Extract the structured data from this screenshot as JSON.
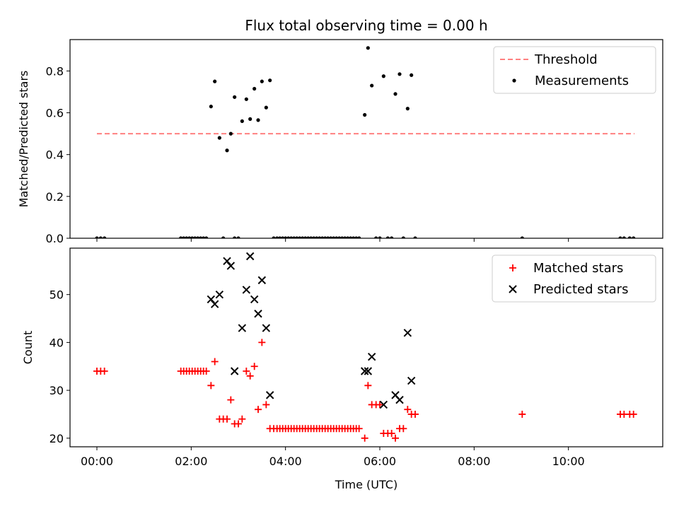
{
  "chart_data": {
    "title": "Flux total observing time = 0.00 h",
    "xlabel": "Time (UTC)",
    "x_unit": "hours",
    "xlim": [
      -0.57,
      12.0
    ],
    "xticks": [
      {
        "value": 0,
        "label": "00:00"
      },
      {
        "value": 2,
        "label": "02:00"
      },
      {
        "value": 4,
        "label": "04:00"
      },
      {
        "value": 6,
        "label": "06:00"
      },
      {
        "value": 8,
        "label": "08:00"
      },
      {
        "value": 10,
        "label": "10:00"
      }
    ],
    "panels": [
      {
        "type": "scatter",
        "ylabel": "Matched/Predicted stars",
        "ylim": [
          0,
          0.95
        ],
        "yticks": [
          0.0,
          0.2,
          0.4,
          0.6,
          0.8
        ],
        "ytick_labels": [
          "0.0",
          "0.2",
          "0.4",
          "0.6",
          "0.8"
        ],
        "legend": "top-right",
        "series": [
          {
            "name": "Threshold",
            "kind": "line",
            "color": "#ff8080",
            "dash": true,
            "x": [
              0.0,
              11.4
            ],
            "y": [
              0.5,
              0.5
            ]
          },
          {
            "name": "Measurements",
            "kind": "dot",
            "color": "#000000",
            "x": [
              0.0,
              0.08,
              0.16,
              1.78,
              1.84,
              1.9,
              1.96,
              2.02,
              2.08,
              2.14,
              2.2,
              2.26,
              2.32,
              2.42,
              2.5,
              2.6,
              2.68,
              2.76,
              2.84,
              2.92,
              2.92,
              3.0,
              3.08,
              3.17,
              3.25,
              3.34,
              3.42,
              3.5,
              3.59,
              3.67,
              3.75,
              3.82,
              3.88,
              3.94,
              4.0,
              4.06,
              4.12,
              4.18,
              4.24,
              4.3,
              4.36,
              4.42,
              4.48,
              4.54,
              4.6,
              4.66,
              4.72,
              4.78,
              4.84,
              4.9,
              4.96,
              5.02,
              5.08,
              5.14,
              5.2,
              5.26,
              5.32,
              5.38,
              5.44,
              5.5,
              5.56,
              5.68,
              5.75,
              5.83,
              5.92,
              6.0,
              6.08,
              6.17,
              6.25,
              6.33,
              6.42,
              6.5,
              6.59,
              6.67,
              6.75,
              9.02,
              11.1,
              11.18,
              11.3,
              11.38
            ],
            "y": [
              0,
              0,
              0,
              0,
              0,
              0,
              0,
              0,
              0,
              0,
              0,
              0,
              0,
              0.63,
              0.75,
              0.48,
              0,
              0.42,
              0.5,
              0.675,
              0,
              0,
              0.56,
              0.665,
              0.57,
              0.715,
              0.565,
              0.75,
              0.625,
              0.755,
              0,
              0,
              0,
              0,
              0,
              0,
              0,
              0,
              0,
              0,
              0,
              0,
              0,
              0,
              0,
              0,
              0,
              0,
              0,
              0,
              0,
              0,
              0,
              0,
              0,
              0,
              0,
              0,
              0,
              0,
              0,
              0.59,
              0.91,
              0.73,
              0,
              0,
              0.775,
              0,
              0,
              0.69,
              0.785,
              0,
              0.62,
              0.78,
              0,
              0,
              0,
              0,
              0,
              0
            ]
          }
        ]
      },
      {
        "type": "scatter",
        "ylabel": "Count",
        "ylim": [
          18.2,
          59.7
        ],
        "yticks": [
          20,
          30,
          40,
          50
        ],
        "ytick_labels": [
          "20",
          "30",
          "40",
          "50"
        ],
        "legend": "top-right",
        "series": [
          {
            "name": "Matched stars",
            "kind": "plus",
            "color": "#ff0000",
            "x": [
              0.0,
              0.08,
              0.16,
              1.78,
              1.84,
              1.9,
              1.96,
              2.02,
              2.08,
              2.14,
              2.2,
              2.26,
              2.32,
              2.42,
              2.5,
              2.6,
              2.68,
              2.76,
              2.84,
              2.92,
              3.0,
              3.08,
              3.17,
              3.25,
              3.34,
              3.42,
              3.5,
              3.59,
              3.67,
              3.75,
              3.82,
              3.88,
              3.94,
              4.0,
              4.06,
              4.12,
              4.18,
              4.24,
              4.3,
              4.36,
              4.42,
              4.48,
              4.54,
              4.6,
              4.66,
              4.72,
              4.78,
              4.84,
              4.9,
              4.96,
              5.02,
              5.08,
              5.14,
              5.2,
              5.26,
              5.32,
              5.38,
              5.44,
              5.5,
              5.56,
              5.68,
              5.75,
              5.83,
              5.92,
              6.0,
              6.08,
              6.17,
              6.25,
              6.33,
              6.42,
              6.5,
              6.59,
              6.67,
              6.75,
              9.02,
              11.1,
              11.18,
              11.3,
              11.38
            ],
            "y": [
              34,
              34,
              34,
              34,
              34,
              34,
              34,
              34,
              34,
              34,
              34,
              34,
              34,
              31,
              36,
              24,
              24,
              24,
              28,
              23,
              23,
              24,
              34,
              33,
              35,
              26,
              40,
              27,
              22,
              22,
              22,
              22,
              22,
              22,
              22,
              22,
              22,
              22,
              22,
              22,
              22,
              22,
              22,
              22,
              22,
              22,
              22,
              22,
              22,
              22,
              22,
              22,
              22,
              22,
              22,
              22,
              22,
              22,
              22,
              22,
              20,
              31,
              27,
              27,
              27,
              21,
              21,
              21,
              20,
              22,
              22,
              26,
              25,
              25,
              25,
              25,
              25,
              25,
              25
            ]
          },
          {
            "name": "Predicted stars",
            "kind": "x",
            "color": "#000000",
            "x": [
              2.42,
              2.5,
              2.6,
              2.76,
              2.84,
              2.92,
              3.08,
              3.17,
              3.25,
              3.34,
              3.42,
              3.5,
              3.59,
              3.67,
              5.68,
              5.75,
              5.83,
              6.08,
              6.33,
              6.42,
              6.59,
              6.67
            ],
            "y": [
              49,
              48,
              50,
              57,
              56,
              34,
              43,
              51,
              58,
              49,
              46,
              53,
              43,
              29,
              34,
              34,
              37,
              27,
              29,
              28,
              42,
              32
            ]
          }
        ]
      }
    ]
  }
}
